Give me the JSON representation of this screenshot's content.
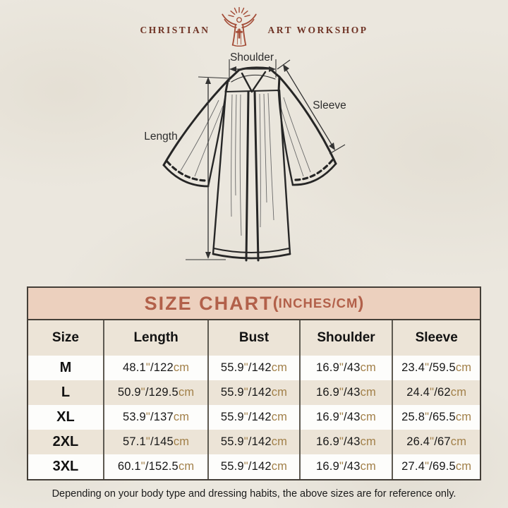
{
  "brand": {
    "left": "CHRISTIAN",
    "right": "ART WORKSHOP",
    "icon": "jesus-sunburst-icon",
    "color": "#6f3325"
  },
  "diagram": {
    "labels": {
      "shoulder": "Shoulder",
      "sleeve": "Sleeve",
      "length": "Length"
    }
  },
  "size_chart": {
    "title": "SIZE CHART",
    "paren_open": "(",
    "subtitle": "INCHES/CM",
    "paren_close": ")",
    "title_color": "#b2604a",
    "header_bg": "#ecd0be",
    "unit_color": "#a28049",
    "columns": [
      "Size",
      "Length",
      "Bust",
      "Shoulder",
      "Sleeve"
    ],
    "units": {
      "inch_mark": "\"",
      "separator": "/",
      "cm_suffix": "cm"
    },
    "rows": [
      {
        "size": "M",
        "length": {
          "in": "48.1",
          "cm": "122"
        },
        "bust": {
          "in": "55.9",
          "cm": "142"
        },
        "shoulder": {
          "in": "16.9",
          "cm": "43"
        },
        "sleeve": {
          "in": "23.4",
          "cm": "59.5"
        }
      },
      {
        "size": "L",
        "length": {
          "in": "50.9",
          "cm": "129.5"
        },
        "bust": {
          "in": "55.9",
          "cm": "142"
        },
        "shoulder": {
          "in": "16.9",
          "cm": "43"
        },
        "sleeve": {
          "in": "24.4",
          "cm": "62"
        }
      },
      {
        "size": "XL",
        "length": {
          "in": "53.9",
          "cm": "137"
        },
        "bust": {
          "in": "55.9",
          "cm": "142"
        },
        "shoulder": {
          "in": "16.9",
          "cm": "43"
        },
        "sleeve": {
          "in": "25.8",
          "cm": "65.5"
        }
      },
      {
        "size": "2XL",
        "length": {
          "in": "57.1",
          "cm": "145"
        },
        "bust": {
          "in": "55.9",
          "cm": "142"
        },
        "shoulder": {
          "in": "16.9",
          "cm": "43"
        },
        "sleeve": {
          "in": "26.4",
          "cm": "67"
        }
      },
      {
        "size": "3XL",
        "length": {
          "in": "60.1",
          "cm": "152.5"
        },
        "bust": {
          "in": "55.9",
          "cm": "142"
        },
        "shoulder": {
          "in": "16.9",
          "cm": "43"
        },
        "sleeve": {
          "in": "27.4",
          "cm": "69.5"
        }
      }
    ]
  },
  "footer": {
    "note": "Depending on your body type and dressing habits, the above sizes are for reference only."
  }
}
